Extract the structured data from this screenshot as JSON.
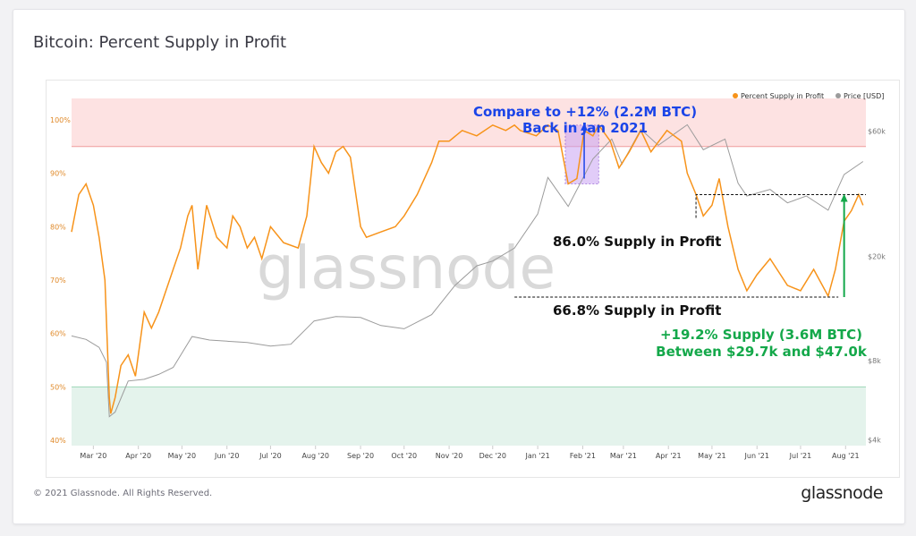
{
  "header": {
    "title": "Bitcoin: Percent Supply in Profit"
  },
  "footer": {
    "copyright": "© 2021 Glassnode. All Rights Reserved.",
    "logo": "glassnode"
  },
  "watermark": "glassnode",
  "colors": {
    "supply": "#f7931a",
    "price": "#9b9b9b",
    "upper_band": "#fde2e2",
    "lower_band": "#e4f3ec",
    "upper_line": "#f09c9c",
    "lower_line": "#9ed6b8",
    "blue_annotation": "#1a44e8",
    "green_annotation": "#14a84a",
    "highlight_box": "#c9a3f3"
  },
  "chart_data": {
    "type": "line",
    "title": "Bitcoin: Percent Supply in Profit",
    "x_ticks": [
      "Mar '20",
      "Apr '20",
      "May '20",
      "Jun '20",
      "Jul '20",
      "Aug '20",
      "Sep '20",
      "Oct '20",
      "Nov '20",
      "Dec '20",
      "Jan '21",
      "Feb '21",
      "Mar '21",
      "Apr '21",
      "May '21",
      "Jun '21",
      "Jul '21",
      "Aug '21"
    ],
    "y_left": {
      "ticks": [
        "40%",
        "50%",
        "60%",
        "70%",
        "80%",
        "90%",
        "100%"
      ],
      "range": [
        39,
        104
      ]
    },
    "y_right": {
      "ticks": [
        "$4k",
        "$8k",
        "$20k",
        "$60k"
      ],
      "scale": "log",
      "range": [
        3800,
        80000
      ]
    },
    "bands": {
      "upper_threshold": 95,
      "lower_threshold": 50
    },
    "legend": {
      "placement": "top-right",
      "entries": [
        {
          "name": "Percent Supply in Profit",
          "color": "#f7931a"
        },
        {
          "name": "Price [USD]",
          "color": "#9b9b9b"
        }
      ]
    },
    "series": [
      {
        "name": "Percent Supply in Profit",
        "axis": "left",
        "x": [
          "2020-02-15",
          "2020-02-20",
          "2020-02-25",
          "2020-03-01",
          "2020-03-05",
          "2020-03-09",
          "2020-03-12",
          "2020-03-13",
          "2020-03-16",
          "2020-03-20",
          "2020-03-25",
          "2020-03-30",
          "2020-04-05",
          "2020-04-10",
          "2020-04-15",
          "2020-04-20",
          "2020-04-25",
          "2020-04-30",
          "2020-05-05",
          "2020-05-08",
          "2020-05-12",
          "2020-05-18",
          "2020-05-25",
          "2020-06-01",
          "2020-06-05",
          "2020-06-10",
          "2020-06-15",
          "2020-06-20",
          "2020-06-25",
          "2020-07-01",
          "2020-07-10",
          "2020-07-20",
          "2020-07-26",
          "2020-07-31",
          "2020-08-05",
          "2020-08-10",
          "2020-08-15",
          "2020-08-20",
          "2020-08-25",
          "2020-09-01",
          "2020-09-05",
          "2020-09-15",
          "2020-09-25",
          "2020-10-01",
          "2020-10-10",
          "2020-10-20",
          "2020-10-25",
          "2020-11-01",
          "2020-11-10",
          "2020-11-20",
          "2020-12-01",
          "2020-12-10",
          "2020-12-16",
          "2020-12-20",
          "2020-12-31",
          "2021-01-08",
          "2021-01-15",
          "2021-01-22",
          "2021-01-28",
          "2021-02-02",
          "2021-02-08",
          "2021-02-12",
          "2021-02-20",
          "2021-02-26",
          "2021-03-05",
          "2021-03-13",
          "2021-03-20",
          "2021-03-31",
          "2021-04-10",
          "2021-04-14",
          "2021-04-20",
          "2021-04-25",
          "2021-05-01",
          "2021-05-06",
          "2021-05-12",
          "2021-05-19",
          "2021-05-25",
          "2021-06-01",
          "2021-06-10",
          "2021-06-22",
          "2021-07-01",
          "2021-07-10",
          "2021-07-20",
          "2021-07-25",
          "2021-07-31",
          "2021-08-05",
          "2021-08-10",
          "2021-08-13"
        ],
        "values": [
          79,
          86,
          88,
          84,
          78,
          70,
          48,
          45,
          48,
          54,
          56,
          52,
          64,
          61,
          64,
          68,
          72,
          76,
          82,
          84,
          72,
          84,
          78,
          76,
          82,
          80,
          76,
          78,
          74,
          80,
          77,
          76,
          82,
          95,
          92,
          90,
          94,
          95,
          93,
          80,
          78,
          79,
          80,
          82,
          86,
          92,
          96,
          96,
          98,
          97,
          99,
          98,
          99,
          98,
          97,
          99,
          98,
          88,
          89,
          98,
          97,
          99,
          96,
          91,
          94,
          98,
          94,
          98,
          96,
          90,
          86,
          82,
          84,
          89,
          80,
          72,
          68,
          71,
          74,
          69,
          68,
          72,
          67,
          72,
          81,
          83,
          86,
          84
        ]
      },
      {
        "name": "Price [USD]",
        "axis": "right",
        "x": [
          "2020-02-15",
          "2020-02-25",
          "2020-03-05",
          "2020-03-10",
          "2020-03-12",
          "2020-03-16",
          "2020-03-25",
          "2020-04-05",
          "2020-04-15",
          "2020-04-25",
          "2020-05-08",
          "2020-05-20",
          "2020-06-01",
          "2020-06-15",
          "2020-07-01",
          "2020-07-15",
          "2020-07-31",
          "2020-08-15",
          "2020-09-01",
          "2020-09-15",
          "2020-10-01",
          "2020-10-20",
          "2020-11-05",
          "2020-11-20",
          "2020-12-01",
          "2020-12-16",
          "2021-01-01",
          "2021-01-08",
          "2021-01-22",
          "2021-02-08",
          "2021-02-21",
          "2021-02-28",
          "2021-03-13",
          "2021-03-25",
          "2021-04-14",
          "2021-04-25",
          "2021-05-10",
          "2021-05-19",
          "2021-05-25",
          "2021-06-10",
          "2021-06-22",
          "2021-07-05",
          "2021-07-20",
          "2021-07-31",
          "2021-08-13"
        ],
        "values": [
          9950,
          9650,
          9000,
          7900,
          4900,
          5100,
          6700,
          6800,
          7100,
          7550,
          9900,
          9600,
          9500,
          9400,
          9100,
          9250,
          11350,
          11800,
          11700,
          10900,
          10600,
          12000,
          15500,
          18400,
          19200,
          21500,
          29000,
          40000,
          31000,
          47000,
          56000,
          45000,
          61000,
          53000,
          63500,
          51000,
          56000,
          38000,
          34000,
          36000,
          32000,
          34000,
          30000,
          41000,
          46000
        ]
      }
    ],
    "annotations": [
      {
        "text": "Compare to +12% (2.2M BTC)",
        "color": "#1a44e8"
      },
      {
        "text": "Back in Jan 2021",
        "color": "#1a44e8"
      },
      {
        "text": "86.0% Supply in Profit",
        "value": 86.0
      },
      {
        "text": "66.8% Supply in Profit",
        "value": 66.8
      },
      {
        "text": "+19.2% Supply (3.6M BTC)",
        "color": "#14a84a"
      },
      {
        "text": "Between $29.7k and $47.0k",
        "color": "#14a84a"
      }
    ]
  }
}
